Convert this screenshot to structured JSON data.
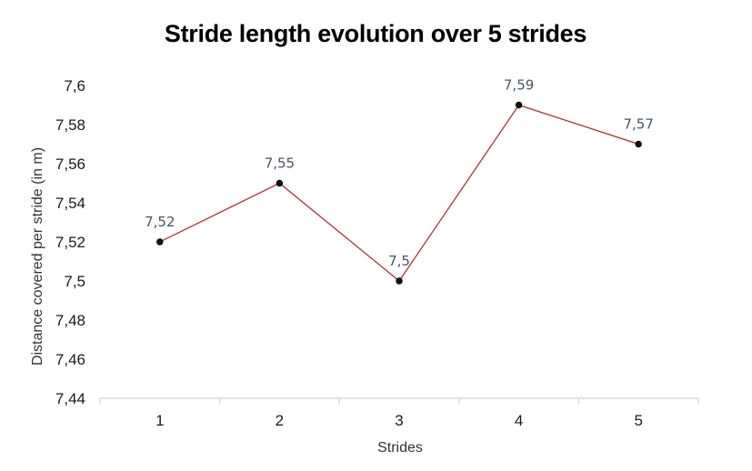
{
  "chart_data": {
    "type": "line",
    "title": "Stride length evolution over 5 strides",
    "xlabel": "Strides",
    "ylabel": "Distance covered per stride (in m)",
    "categories": [
      "1",
      "2",
      "3",
      "4",
      "5"
    ],
    "series": [
      {
        "name": "Stride length",
        "values": [
          7.52,
          7.55,
          7.5,
          7.59,
          7.57
        ]
      }
    ],
    "data_labels": [
      "7,52",
      "7,55",
      "7,5",
      "7,59",
      "7,57"
    ],
    "ylim": [
      7.44,
      7.6
    ],
    "yticks": [
      7.44,
      7.46,
      7.48,
      7.5,
      7.52,
      7.54,
      7.56,
      7.58,
      7.6
    ],
    "ytick_labels": [
      "7,44",
      "7,46",
      "7,48",
      "7,5",
      "7,52",
      "7,54",
      "7,56",
      "7,58",
      "7,6"
    ],
    "grid": false,
    "legend": "none",
    "colors": {
      "line": "#b22222",
      "marker_fill": "#111111",
      "axis": "#d9d9d9",
      "data_label": "#44546a"
    }
  }
}
